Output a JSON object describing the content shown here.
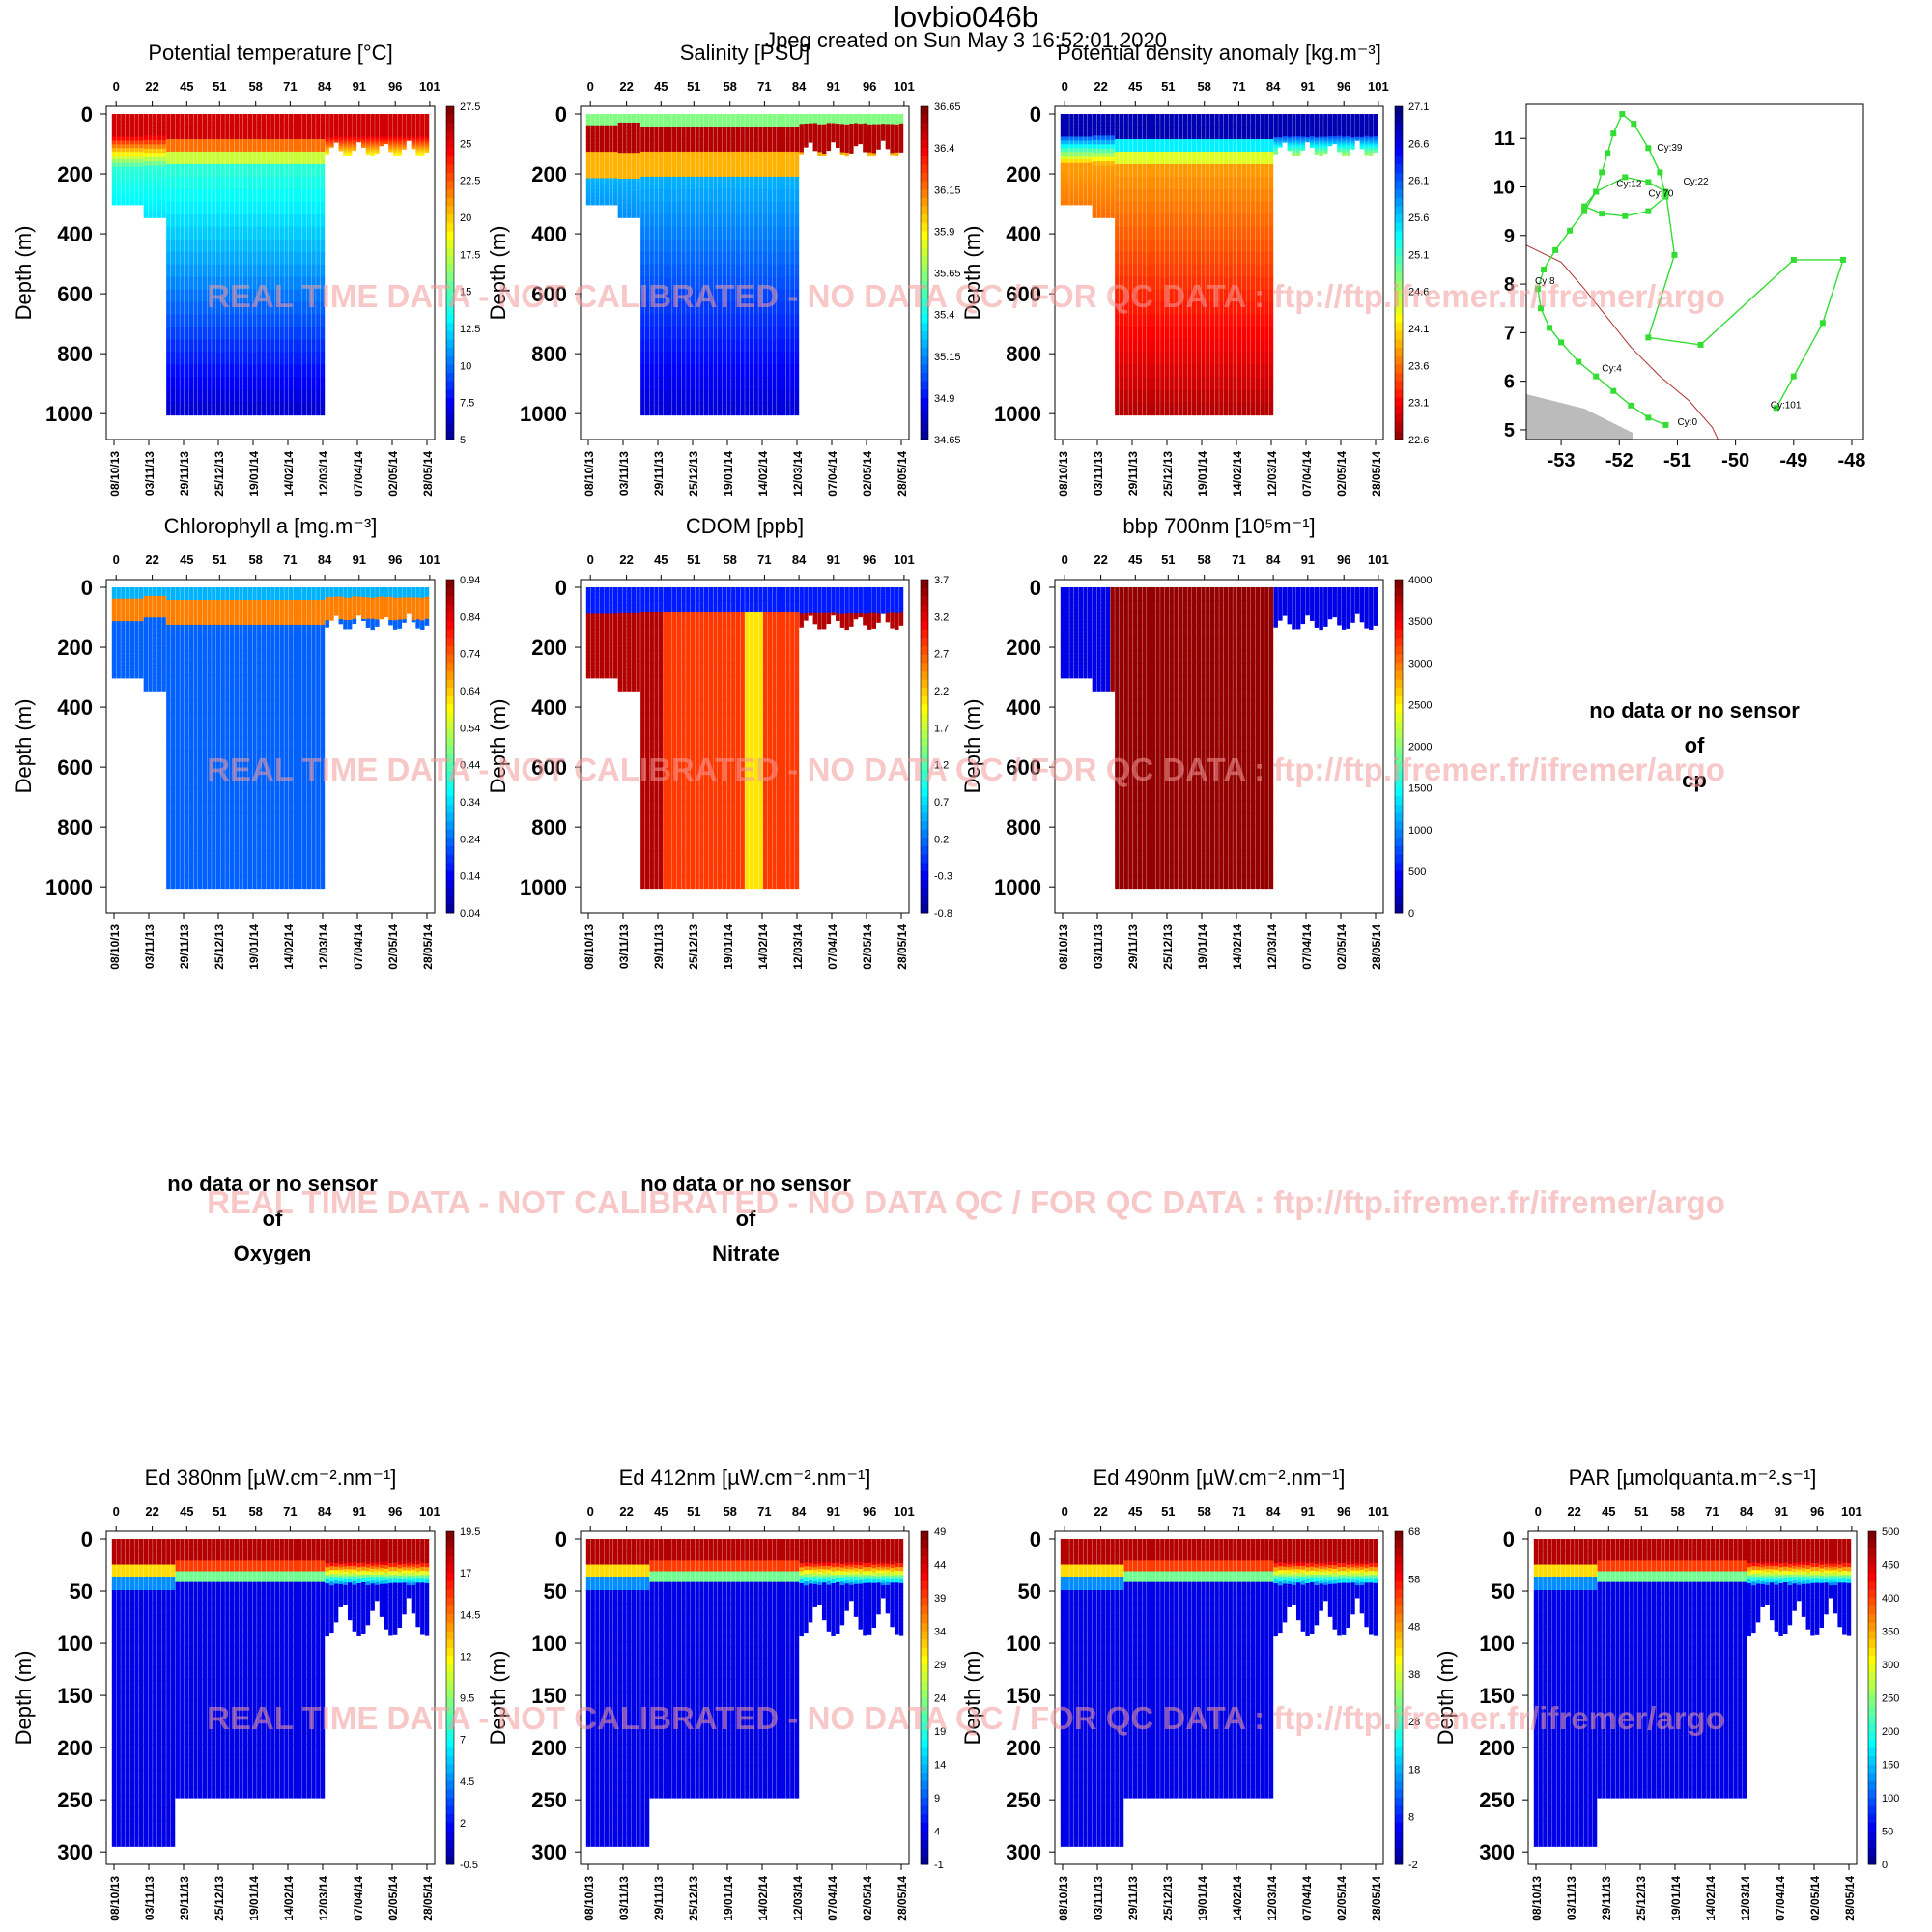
{
  "header": {
    "title": "lovbio046b",
    "subtitle": "Jpeg created on  Sun May  3 16:52:01 2020"
  },
  "watermark": "REAL TIME DATA - NOT CALIBRATED - NO DATA QC   /  FOR QC DATA : ftp://ftp.ifremer.fr/ifremer/argo",
  "nodata": {
    "cp": [
      "no data or no sensor",
      "of",
      "cp"
    ],
    "oxygen": [
      "no data or no sensor",
      "of",
      "Oxygen"
    ],
    "nitrate": [
      "no data or no sensor",
      "of",
      "Nitrate"
    ]
  },
  "chart_data": [
    {
      "type": "heatmap",
      "id": "temp",
      "title": "Potential temperature [°C]",
      "ylabel": "Depth (m)",
      "cycle_ticks": [
        "0",
        "22",
        "45",
        "51",
        "58",
        "71",
        "84",
        "91",
        "96",
        "101"
      ],
      "date_ticks": [
        "08/10/13",
        "03/11/13",
        "29/11/13",
        "25/12/13",
        "19/01/14",
        "14/02/14",
        "12/03/14",
        "07/04/14",
        "02/05/14",
        "28/05/14"
      ],
      "y_ticks": [
        0,
        200,
        400,
        600,
        800,
        1000
      ],
      "ylim": [
        0,
        1080
      ],
      "colorbar": {
        "ticks": [
          "27.5",
          "25",
          "22.5",
          "20",
          "17.5",
          "15",
          "12.5",
          "10",
          "7.5",
          "5"
        ],
        "range": [
          5,
          27.5
        ]
      },
      "colormap": [
        "#00008f",
        "#0000ff",
        "#0080ff",
        "#00ffff",
        "#80ff80",
        "#ffff00",
        "#ff8000",
        "#ff0000",
        "#800000"
      ]
    },
    {
      "type": "heatmap",
      "id": "sal",
      "title": "Salinity [PSU]",
      "ylabel": "Depth (m)",
      "cycle_ticks": [
        "0",
        "22",
        "45",
        "51",
        "58",
        "71",
        "84",
        "91",
        "96",
        "101"
      ],
      "date_ticks": [
        "08/10/13",
        "03/11/13",
        "29/11/13",
        "25/12/13",
        "19/01/14",
        "14/02/14",
        "12/03/14",
        "07/04/14",
        "02/05/14",
        "28/05/14"
      ],
      "y_ticks": [
        0,
        200,
        400,
        600,
        800,
        1000
      ],
      "ylim": [
        0,
        1080
      ],
      "colorbar": {
        "ticks": [
          "36.65",
          "36.4",
          "36.15",
          "35.9",
          "35.65",
          "35.4",
          "35.15",
          "34.9",
          "34.65"
        ],
        "range": [
          34.65,
          36.65
        ]
      }
    },
    {
      "type": "heatmap",
      "id": "dens",
      "title": "Potential density anomaly [kg.m⁻³]",
      "ylabel": "Depth (m)",
      "cycle_ticks": [
        "0",
        "22",
        "45",
        "51",
        "58",
        "71",
        "84",
        "91",
        "96",
        "101"
      ],
      "date_ticks": [
        "08/10/13",
        "03/11/13",
        "29/11/13",
        "25/12/13",
        "19/01/14",
        "14/02/14",
        "12/03/14",
        "07/04/14",
        "02/05/14",
        "28/05/14"
      ],
      "y_ticks": [
        0,
        200,
        400,
        600,
        800,
        1000
      ],
      "ylim": [
        0,
        1080
      ],
      "colorbar": {
        "ticks": [
          "27.1",
          "26.6",
          "26.1",
          "25.6",
          "25.1",
          "24.6",
          "24.1",
          "23.6",
          "23.1",
          "22.6"
        ],
        "range": [
          22.6,
          27.1
        ],
        "reversed": true
      }
    },
    {
      "type": "scatter",
      "id": "map",
      "title": "",
      "xlabel": "",
      "ylabel": "",
      "xlim": [
        -53.6,
        -47.8
      ],
      "ylim": [
        4.8,
        11.7
      ],
      "x_ticks": [
        "-53",
        "-52",
        "-51",
        "-50",
        "-49",
        "-48"
      ],
      "y_ticks": [
        "5",
        "6",
        "7",
        "8",
        "9",
        "10",
        "11"
      ],
      "track": [
        [
          -51.2,
          5.1
        ],
        [
          -51.5,
          5.25
        ],
        [
          -51.8,
          5.5
        ],
        [
          -52.1,
          5.8
        ],
        [
          -52.4,
          6.1
        ],
        [
          -52.7,
          6.4
        ],
        [
          -53.0,
          6.8
        ],
        [
          -53.2,
          7.1
        ],
        [
          -53.35,
          7.5
        ],
        [
          -53.4,
          7.9
        ],
        [
          -53.3,
          8.3
        ],
        [
          -53.1,
          8.7
        ],
        [
          -52.85,
          9.1
        ],
        [
          -52.6,
          9.5
        ],
        [
          -52.4,
          9.9
        ],
        [
          -52.3,
          10.3
        ],
        [
          -52.2,
          10.7
        ],
        [
          -52.1,
          11.1
        ],
        [
          -51.95,
          11.5
        ],
        [
          -51.75,
          11.3
        ],
        [
          -51.5,
          10.8
        ],
        [
          -51.3,
          10.3
        ],
        [
          -51.2,
          9.8
        ],
        [
          -51.5,
          9.5
        ],
        [
          -51.9,
          9.4
        ],
        [
          -52.3,
          9.45
        ],
        [
          -52.6,
          9.6
        ],
        [
          -52.4,
          9.9
        ],
        [
          -51.9,
          10.2
        ],
        [
          -51.5,
          10.1
        ],
        [
          -51.2,
          9.9
        ],
        [
          -51.05,
          8.6
        ],
        [
          -51.5,
          6.9
        ],
        [
          -50.6,
          6.75
        ],
        [
          -49.0,
          8.5
        ],
        [
          -48.15,
          8.5
        ],
        [
          -48.5,
          7.2
        ],
        [
          -49.0,
          6.1
        ],
        [
          -49.3,
          5.45
        ]
      ],
      "labels": [
        {
          "text": "Cy:0",
          "x": -51.0,
          "y": 5.1
        },
        {
          "text": "Cy:4",
          "x": -52.3,
          "y": 6.2
        },
        {
          "text": "Cy:8",
          "x": -53.45,
          "y": 8.0
        },
        {
          "text": "Cy:12",
          "x": -52.05,
          "y": 10.0
        },
        {
          "text": "Cy:39",
          "x": -51.35,
          "y": 10.75
        },
        {
          "text": "Cy:70",
          "x": -51.5,
          "y": 9.8
        },
        {
          "text": "Cy:22",
          "x": -50.9,
          "y": 10.05
        },
        {
          "text": "Cy:101",
          "x": -49.4,
          "y": 5.45
        }
      ],
      "coast": [
        [
          -53.6,
          8.8
        ],
        [
          -53.0,
          8.45
        ],
        [
          -52.6,
          7.9
        ],
        [
          -52.2,
          7.3
        ],
        [
          -51.8,
          6.7
        ],
        [
          -51.3,
          6.1
        ],
        [
          -50.8,
          5.6
        ],
        [
          -50.4,
          5.05
        ],
        [
          -50.3,
          4.8
        ]
      ],
      "land_color": "#bbbbbb",
      "coast_color": "#b03030",
      "track_color": "#33dd33"
    },
    {
      "type": "heatmap",
      "id": "chla",
      "title": "Chlorophyll a [mg.m⁻³]",
      "ylabel": "Depth (m)",
      "cycle_ticks": [
        "0",
        "22",
        "45",
        "51",
        "58",
        "71",
        "84",
        "91",
        "96",
        "101"
      ],
      "date_ticks": [
        "08/10/13",
        "03/11/13",
        "29/11/13",
        "25/12/13",
        "19/01/14",
        "14/02/14",
        "12/03/14",
        "07/04/14",
        "02/05/14",
        "28/05/14"
      ],
      "y_ticks": [
        0,
        200,
        400,
        600,
        800,
        1000
      ],
      "ylim": [
        0,
        1080
      ],
      "colorbar": {
        "ticks": [
          "0.94",
          "0.84",
          "0.74",
          "0.64",
          "0.54",
          "0.44",
          "0.34",
          "0.24",
          "0.14",
          "0.04"
        ],
        "range": [
          0.04,
          0.94
        ]
      }
    },
    {
      "type": "heatmap",
      "id": "cdom",
      "title": "CDOM  [ppb]",
      "ylabel": "Depth (m)",
      "cycle_ticks": [
        "0",
        "22",
        "45",
        "51",
        "58",
        "71",
        "84",
        "91",
        "96",
        "101"
      ],
      "date_ticks": [
        "08/10/13",
        "03/11/13",
        "29/11/13",
        "25/12/13",
        "19/01/14",
        "14/02/14",
        "12/03/14",
        "07/04/14",
        "02/05/14",
        "28/05/14"
      ],
      "y_ticks": [
        0,
        200,
        400,
        600,
        800,
        1000
      ],
      "ylim": [
        0,
        1080
      ],
      "colorbar": {
        "ticks": [
          "3.7",
          "3.2",
          "2.7",
          "2.2",
          "1.7",
          "1.2",
          "0.7",
          "0.2",
          "-0.3",
          "-0.8"
        ],
        "range": [
          -0.8,
          3.7
        ]
      }
    },
    {
      "type": "heatmap",
      "id": "bbp",
      "title": "bbp 700nm [10⁵m⁻¹]",
      "ylabel": "Depth (m)",
      "cycle_ticks": [
        "0",
        "22",
        "45",
        "51",
        "58",
        "71",
        "84",
        "91",
        "96",
        "101"
      ],
      "date_ticks": [
        "08/10/13",
        "03/11/13",
        "29/11/13",
        "25/12/13",
        "19/01/14",
        "14/02/14",
        "12/03/14",
        "07/04/14",
        "02/05/14",
        "28/05/14"
      ],
      "y_ticks": [
        0,
        200,
        400,
        600,
        800,
        1000
      ],
      "ylim": [
        0,
        1080
      ],
      "colorbar": {
        "ticks": [
          "4000",
          "3500",
          "3000",
          "2500",
          "2000",
          "1500",
          "1000",
          "500",
          "0"
        ],
        "range": [
          0,
          4000
        ]
      }
    },
    {
      "type": "heatmap",
      "id": "ed380",
      "title": "Ed 380nm [µW.cm⁻².nm⁻¹]",
      "ylabel": "Depth (m)",
      "cycle_ticks": [
        "0",
        "22",
        "45",
        "51",
        "58",
        "71",
        "84",
        "91",
        "96",
        "101"
      ],
      "date_ticks": [
        "08/10/13",
        "03/11/13",
        "29/11/13",
        "25/12/13",
        "19/01/14",
        "14/02/14",
        "12/03/14",
        "07/04/14",
        "02/05/14",
        "28/05/14"
      ],
      "y_ticks": [
        0,
        50,
        100,
        150,
        200,
        250,
        300
      ],
      "ylim": [
        0,
        310
      ],
      "colorbar": {
        "ticks": [
          "19.5",
          "17",
          "14.5",
          "12",
          "9.5",
          "7",
          "4.5",
          "2",
          "-0.5"
        ],
        "range": [
          -0.5,
          19.5
        ]
      }
    },
    {
      "type": "heatmap",
      "id": "ed412",
      "title": "Ed 412nm [µW.cm⁻².nm⁻¹]",
      "ylabel": "Depth (m)",
      "cycle_ticks": [
        "0",
        "22",
        "45",
        "51",
        "58",
        "71",
        "84",
        "91",
        "96",
        "101"
      ],
      "date_ticks": [
        "08/10/13",
        "03/11/13",
        "29/11/13",
        "25/12/13",
        "19/01/14",
        "14/02/14",
        "12/03/14",
        "07/04/14",
        "02/05/14",
        "28/05/14"
      ],
      "y_ticks": [
        0,
        50,
        100,
        150,
        200,
        250,
        300
      ],
      "ylim": [
        0,
        310
      ],
      "colorbar": {
        "ticks": [
          "49",
          "44",
          "39",
          "34",
          "29",
          "24",
          "19",
          "14",
          "9",
          "4",
          "-1"
        ],
        "range": [
          -1,
          49
        ]
      }
    },
    {
      "type": "heatmap",
      "id": "ed490",
      "title": "Ed 490nm [µW.cm⁻².nm⁻¹]",
      "ylabel": "Depth (m)",
      "cycle_ticks": [
        "0",
        "22",
        "45",
        "51",
        "58",
        "71",
        "84",
        "91",
        "96",
        "101"
      ],
      "date_ticks": [
        "08/10/13",
        "03/11/13",
        "29/11/13",
        "25/12/13",
        "19/01/14",
        "14/02/14",
        "12/03/14",
        "07/04/14",
        "02/05/14",
        "28/05/14"
      ],
      "y_ticks": [
        0,
        50,
        100,
        150,
        200,
        250,
        300
      ],
      "ylim": [
        0,
        310
      ],
      "colorbar": {
        "ticks": [
          "68",
          "58",
          "48",
          "38",
          "28",
          "18",
          "8",
          "-2"
        ],
        "range": [
          -2,
          68
        ]
      }
    },
    {
      "type": "heatmap",
      "id": "par",
      "title": "PAR [µmolquanta.m⁻².s⁻¹]",
      "ylabel": "Depth (m)",
      "cycle_ticks": [
        "0",
        "22",
        "45",
        "51",
        "58",
        "71",
        "84",
        "91",
        "96",
        "101"
      ],
      "date_ticks": [
        "08/10/13",
        "03/11/13",
        "29/11/13",
        "25/12/13",
        "19/01/14",
        "14/02/14",
        "12/03/14",
        "07/04/14",
        "02/05/14",
        "28/05/14"
      ],
      "y_ticks": [
        0,
        50,
        100,
        150,
        200,
        250,
        300
      ],
      "ylim": [
        0,
        310
      ],
      "colorbar": {
        "ticks": [
          "500",
          "450",
          "400",
          "350",
          "300",
          "250",
          "200",
          "150",
          "100",
          "50",
          "0"
        ],
        "range": [
          0,
          500
        ]
      }
    }
  ]
}
